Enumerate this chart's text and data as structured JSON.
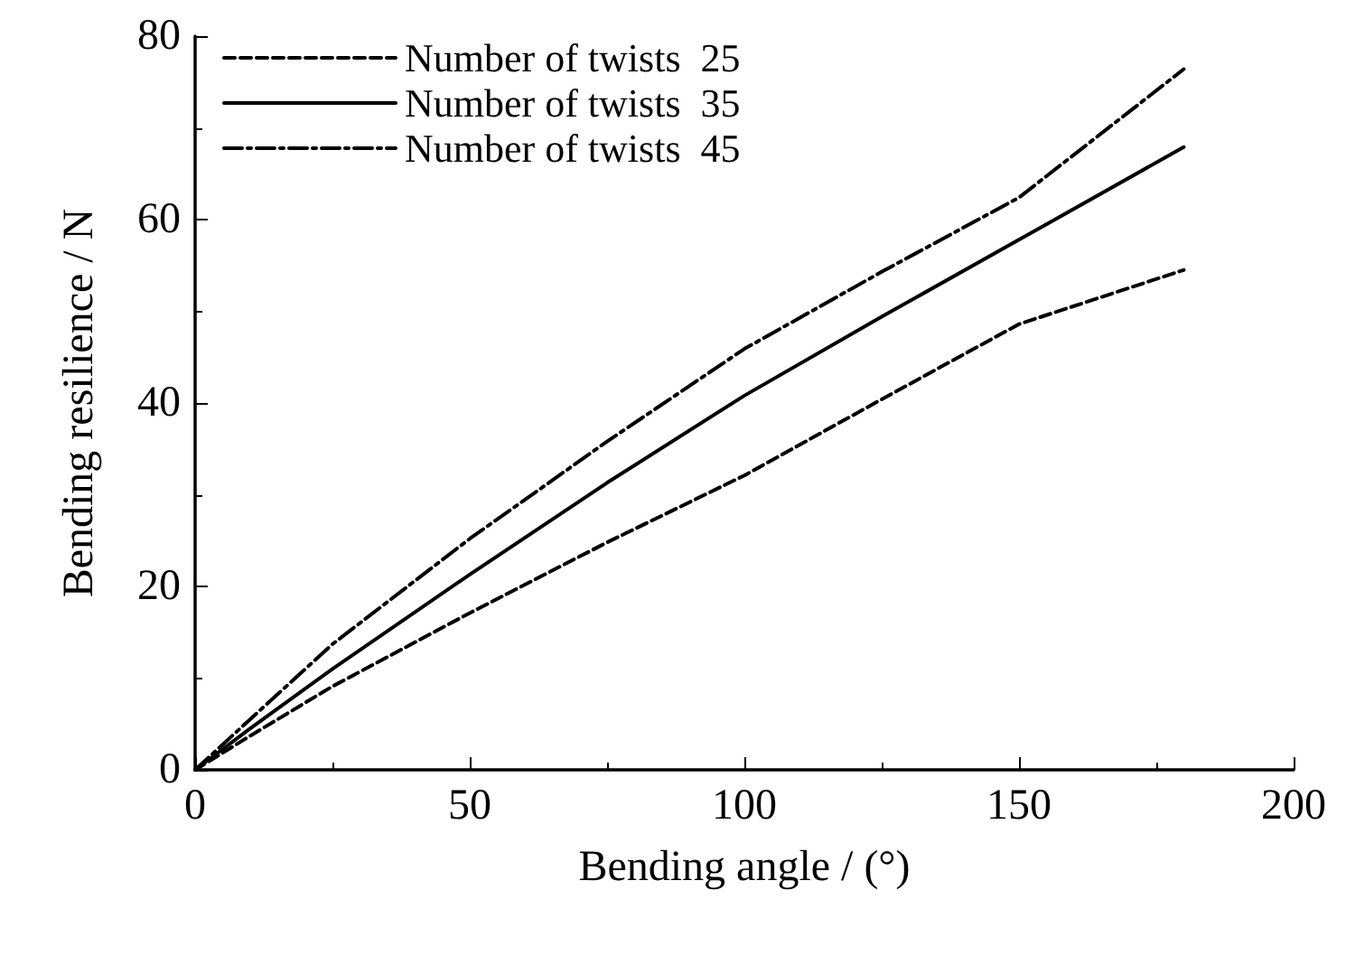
{
  "chart_data": {
    "type": "line",
    "xlabel": "Bending angle / (°)",
    "ylabel": "Bending resilience / N",
    "xlim": [
      0,
      200
    ],
    "xticks": [
      0,
      50,
      100,
      150,
      200
    ],
    "ylim": [
      0,
      80
    ],
    "yticks": [
      0,
      20,
      40,
      60,
      80
    ],
    "grid": false,
    "legend": "top left",
    "marker": "none",
    "x": [
      0,
      10,
      25,
      50,
      75,
      100,
      125,
      150,
      180
    ],
    "series": [
      {
        "name": "Number of twists  25",
        "color": "#000000",
        "line_style": "dashed",
        "values": [
          0,
          3.7,
          9.1,
          17.1,
          24.8,
          32.1,
          40.4,
          48.6,
          54.5
        ]
      },
      {
        "name": "Number of twists  35",
        "color": "#000000",
        "line_style": "solid",
        "values": [
          0,
          4.5,
          11.0,
          21.3,
          31.3,
          40.8,
          49.4,
          57.8,
          67.9
        ]
      },
      {
        "name": "Number of twists  45",
        "color": "#000000",
        "line_style": "dashdot",
        "values": [
          0,
          5.5,
          13.7,
          25.2,
          35.8,
          45.9,
          54.3,
          62.4,
          76.4
        ]
      }
    ]
  }
}
